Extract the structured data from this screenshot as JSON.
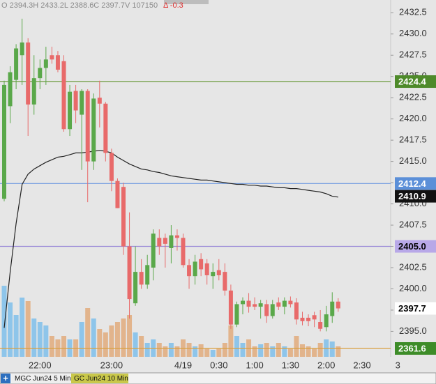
{
  "header": {
    "ohlcv": "O 2394.3H 2433.2L 2388.6C 2397.7V 107150",
    "change": "Δ -0.3"
  },
  "chart_data": {
    "type": "candlestick",
    "categories": [
      null,
      null,
      null,
      null,
      null,
      null,
      "22:00",
      null,
      null,
      null,
      null,
      null,
      null,
      null,
      null,
      null,
      null,
      null,
      "23:00",
      null,
      null,
      null,
      null,
      null,
      null,
      null,
      null,
      null,
      null,
      null,
      "4/19",
      null,
      null,
      null,
      null,
      null,
      "0:30",
      null,
      null,
      null,
      null,
      null,
      "1:00",
      null,
      null,
      null,
      null,
      null,
      "1:30",
      null,
      null,
      null,
      null,
      null,
      "2:00",
      null,
      null,
      null,
      null,
      null,
      "2:30",
      null,
      null,
      null,
      null,
      null,
      "3"
    ],
    "open": [
      2410.6,
      2421.5,
      2424.6,
      2427.5,
      2429.0,
      2421.7,
      2424.8,
      2426.0,
      2427.5,
      2427.5,
      2426.8,
      2418.8,
      2423.3,
      2420.5,
      2423.3,
      2415.0,
      2422.5,
      2421.8,
      2416.0,
      2412.7,
      2412.0,
      2405.0,
      2398.3,
      2402.0,
      2400.5,
      2402.5,
      2406.0,
      2406.0,
      2404.8,
      2406.3,
      2406.0,
      2402.8,
      2401.5,
      2403.5,
      2403.0,
      2401.5,
      2402.2,
      2402.0,
      2399.8,
      2395.8,
      2398.2,
      2398.6,
      2398.2,
      2397.9,
      2398.2,
      2396.8,
      2398.4,
      2397.9,
      2398.6,
      2398.4,
      2396.6,
      2396.6,
      2396.9,
      2396.1,
      2395.5,
      2396.8,
      2398.5,
      null,
      null,
      null,
      null,
      null,
      null,
      null,
      null,
      null,
      null
    ],
    "high": [
      2424.5,
      2426.2,
      2428.8,
      2431.8,
      2429.5,
      2427.5,
      2427.0,
      2428.5,
      2428.5,
      2428.0,
      2427.5,
      2424.0,
      2424.0,
      2423.5,
      2423.5,
      2423.0,
      2424.5,
      2422.0,
      2416.5,
      2413.0,
      2412.5,
      2409.0,
      2405.0,
      2403.5,
      2404.0,
      2407.0,
      2407.0,
      2406.5,
      2407.5,
      2407.0,
      2406.5,
      2403.5,
      2404.0,
      2404.2,
      2403.5,
      2403.0,
      2403.5,
      2403.0,
      2400.5,
      2398.5,
      2399.0,
      2399.5,
      2399.0,
      2398.7,
      2398.7,
      2398.7,
      2399.0,
      2399.0,
      2399.1,
      2398.9,
      2397.3,
      2397.0,
      2397.3,
      2397.5,
      2398.0,
      2399.6,
      2398.9,
      null,
      null,
      null,
      null,
      null,
      null,
      null,
      null,
      null,
      null
    ],
    "low": [
      2410.3,
      2419.5,
      2423.5,
      2424.0,
      2418.0,
      2420.5,
      2423.5,
      2424.0,
      2426.5,
      2425.5,
      2418.5,
      2418.0,
      2419.5,
      2414.0,
      2410.2,
      2414.0,
      2419.0,
      2415.0,
      2411.5,
      2409.5,
      2404.0,
      2396.5,
      2398.0,
      2400.0,
      2400.0,
      2401.0,
      2404.0,
      2402.5,
      2403.0,
      2404.5,
      2402.5,
      2400.0,
      2400.5,
      2401.5,
      2400.5,
      2400.0,
      2401.0,
      2399.2,
      2395.3,
      2395.5,
      2397.0,
      2397.2,
      2397.5,
      2396.5,
      2396.0,
      2396.5,
      2397.5,
      2397.0,
      2397.8,
      2395.8,
      2395.7,
      2395.6,
      2395.5,
      2395.0,
      2395.0,
      2396.0,
      2397.3,
      null,
      null,
      null,
      null,
      null,
      null,
      null,
      null,
      null,
      null
    ],
    "close": [
      2424.0,
      2425.5,
      2428.3,
      2429.0,
      2421.7,
      2424.8,
      2426.0,
      2427.0,
      2427.0,
      2425.8,
      2418.8,
      2423.2,
      2421.0,
      2423.3,
      2415.0,
      2422.4,
      2421.8,
      2416.0,
      2412.7,
      2409.5,
      2405.0,
      2398.8,
      2402.0,
      2400.5,
      2402.8,
      2406.5,
      2405.0,
      2405.3,
      2406.3,
      2406.0,
      2402.8,
      2401.5,
      2403.2,
      2402.3,
      2401.6,
      2402.0,
      2401.6,
      2399.8,
      2395.8,
      2398.2,
      2398.6,
      2397.9,
      2397.9,
      2398.3,
      2396.8,
      2398.2,
      2397.9,
      2398.6,
      2398.2,
      2396.4,
      2396.2,
      2396.2,
      2396.4,
      2395.3,
      2397.0,
      2398.5,
      2397.7,
      null,
      null,
      null,
      null,
      null,
      null,
      null,
      null,
      null,
      null
    ],
    "volume": [
      1020,
      780,
      600,
      850,
      800,
      550,
      500,
      450,
      300,
      250,
      300,
      250,
      250,
      500,
      700,
      550,
      400,
      350,
      450,
      500,
      550,
      600,
      350,
      300,
      200,
      250,
      200,
      150,
      200,
      150,
      250,
      200,
      150,
      180,
      120,
      100,
      120,
      200,
      450,
      300,
      200,
      250,
      150,
      180,
      200,
      150,
      200,
      150,
      120,
      300,
      180,
      150,
      120,
      200,
      250,
      220,
      150,
      null,
      null,
      null,
      null,
      null,
      null,
      null,
      null,
      null,
      null
    ],
    "moving_average": [
      2395.4,
      2402.0,
      2407.7,
      2412.3,
      2413.5,
      2414.1,
      2414.5,
      2414.9,
      2415.2,
      2415.5,
      2415.6,
      2415.8,
      2416.0,
      2416.0,
      2416.1,
      2416.2,
      2416.3,
      2416.2,
      2416.0,
      2415.5,
      2415.1,
      2414.7,
      2414.4,
      2414.1,
      2414.0,
      2413.8,
      2413.7,
      2413.5,
      2413.3,
      2413.2,
      2413.1,
      2413.0,
      2412.9,
      2412.8,
      2412.8,
      2412.7,
      2412.6,
      2412.5,
      2412.4,
      2412.3,
      2412.3,
      2412.2,
      2412.2,
      2412.1,
      2412.1,
      2412.0,
      2411.9,
      2411.9,
      2411.8,
      2411.8,
      2411.7,
      2411.6,
      2411.5,
      2411.4,
      2411.2,
      2410.9,
      2410.8,
      null,
      null,
      null,
      null,
      null,
      null,
      null,
      null,
      null,
      null
    ],
    "up_color": "#5aa84a",
    "down_color": "#e86a6a",
    "volume_up_color": "#8ec5ea",
    "volume_down_color": "#e2b48c",
    "ma_color": "#222222",
    "ylim": [
      2392.0,
      2434.0
    ],
    "yticks": [
      {
        "value": 2395,
        "label": "2395.0"
      },
      {
        "value": 2397.5,
        "label": "2397.5"
      },
      {
        "value": 2400,
        "label": "2400.0"
      },
      {
        "value": 2402.5,
        "label": "2402.5"
      },
      {
        "value": 2405,
        "label": "2405.0"
      },
      {
        "value": 2407.5,
        "label": "2407.5"
      },
      {
        "value": 2410,
        "label": "2410.0"
      },
      {
        "value": 2412.5,
        "label": "2412.5"
      },
      {
        "value": 2415,
        "label": "2415.0"
      },
      {
        "value": 2417.5,
        "label": "2417.5"
      },
      {
        "value": 2420,
        "label": "2420.0"
      },
      {
        "value": 2422.5,
        "label": "2422.5"
      },
      {
        "value": 2425,
        "label": "2425.0"
      },
      {
        "value": 2427.5,
        "label": "2427.5"
      },
      {
        "value": 2430,
        "label": "2430.0"
      },
      {
        "value": 2432.5,
        "label": "2432.5"
      }
    ],
    "price_tags": [
      {
        "value": 2424.4,
        "label": "2424.4",
        "color": "#4e8a2a",
        "text_color": "#ffffff",
        "line": true,
        "line_color": "#6a9a3a"
      },
      {
        "value": 2412.4,
        "label": "2412.4",
        "color": "#5b8fd8",
        "text_color": "#ffffff",
        "line": true,
        "line_color": "#6f9be0"
      },
      {
        "value": 2410.9,
        "label": "2410.9",
        "color": "#111111",
        "text_color": "#ffffff",
        "line": false,
        "line_color": "#111111"
      },
      {
        "value": 2405.0,
        "label": "2405.0",
        "color": "#b8a8e8",
        "text_color": "#000000",
        "line": true,
        "line_color": "#9a88d8"
      },
      {
        "value": 2397.7,
        "label": "2397.7",
        "color": "#ffffff",
        "text_color": "#000000",
        "line": false,
        "line_color": "#ffffff"
      },
      {
        "value": 2361.6,
        "label": "2361.6",
        "color": "#3d8c28",
        "text_color": "#ffffff",
        "line": true,
        "line_color": "#d9a040"
      }
    ]
  },
  "footer": {
    "tabs": [
      "MGC Jun24 5 Min",
      "GC Jun24 10 Min"
    ]
  }
}
